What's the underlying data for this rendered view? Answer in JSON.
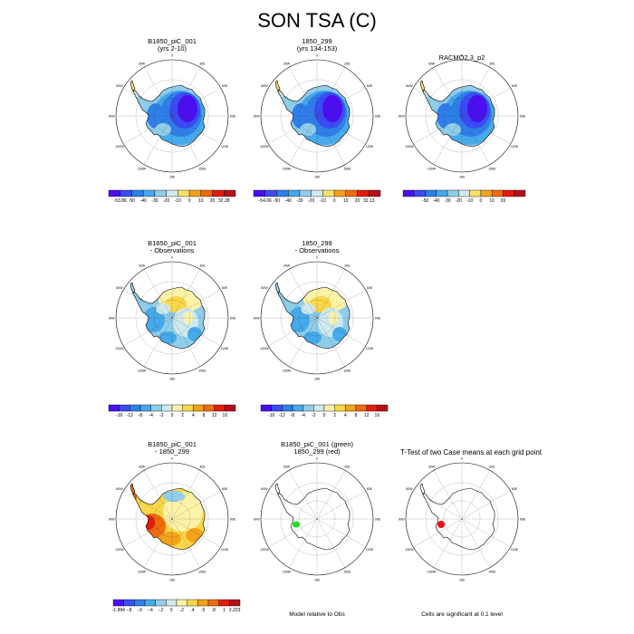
{
  "title": "SON TSA (C)",
  "colors": {
    "abs_scale": [
      "#4b0ef0",
      "#3a4cf5",
      "#2f7fea",
      "#45a9ea",
      "#8fcdea",
      "#cfe9ee",
      "#f8e16a",
      "#f5a21b",
      "#f06b0c",
      "#e41b0b",
      "#b5101a"
    ],
    "diff_scale": [
      "#4b0ef0",
      "#3a4cf5",
      "#2f7fea",
      "#45a9ea",
      "#8fcdea",
      "#cfe9ee",
      "#fdf3a8",
      "#f8d84a",
      "#f5a21b",
      "#f06b0c",
      "#e41b0b",
      "#b5101a"
    ],
    "case1_sig": "#22dd22",
    "case2_sig": "#ee1111"
  },
  "chart_data": [
    {
      "type": "heatmap",
      "projection": "south-polar-stereographic",
      "title": "B1850_piC_001",
      "subtitle": "(yrs 2-10)",
      "colorbar_ticks": [
        "-53.86",
        "-50",
        "-40",
        "-30",
        "-20",
        "-10",
        "0",
        "10",
        "20",
        "32.28"
      ],
      "palette": "abs_scale",
      "value_range": [
        -53.86,
        32.28
      ]
    },
    {
      "type": "heatmap",
      "projection": "south-polar-stereographic",
      "title": "1850_299",
      "subtitle": "(yrs 134-153)",
      "colorbar_ticks": [
        "-54.06",
        "-50",
        "-40",
        "-30",
        "-20",
        "-10",
        "0",
        "10",
        "20",
        "32.13"
      ],
      "palette": "abs_scale",
      "value_range": [
        -54.06,
        32.13
      ]
    },
    {
      "type": "heatmap",
      "projection": "south-polar-stereographic",
      "title": "RACMO2.3_p2",
      "subtitle": "",
      "colorbar_ticks": [
        "-50",
        "-40",
        "-30",
        "-20",
        "-10",
        "0",
        "10",
        "20"
      ],
      "palette": "abs_scale",
      "value_range": [
        -55,
        25
      ]
    },
    {
      "type": "heatmap",
      "projection": "south-polar-stereographic",
      "title": "B1850_piC_001",
      "subtitle": "- Observations",
      "colorbar_ticks": [
        "-16",
        "-12",
        "-8",
        "-4",
        "-2",
        "0",
        "2",
        "4",
        "8",
        "12",
        "16"
      ],
      "palette": "diff_scale",
      "value_range": [
        -16,
        16
      ]
    },
    {
      "type": "heatmap",
      "projection": "south-polar-stereographic",
      "title": "1850_299",
      "subtitle": "- Observations",
      "colorbar_ticks": [
        "-16",
        "-12",
        "-8",
        "-4",
        "-2",
        "0",
        "2",
        "4",
        "8",
        "12",
        "16"
      ],
      "palette": "diff_scale",
      "value_range": [
        -16,
        16
      ]
    },
    {
      "type": "heatmap",
      "projection": "south-polar-stereographic",
      "title": "B1850_piC_001",
      "subtitle": "- 1850_299",
      "colorbar_ticks": [
        "-1.994",
        "-.8",
        "-.6",
        "-.4",
        "-.2",
        "0",
        ".2",
        ".4",
        ".6",
        ".8",
        "1",
        "2.223"
      ],
      "palette": "diff_scale",
      "value_range": [
        -1.994,
        2.223
      ]
    },
    {
      "type": "heatmap",
      "projection": "south-polar-stereographic",
      "title": "B1850_piC_001 (green)",
      "subtitle": "1850_299 (red)",
      "note": "Model relative to Obs"
    },
    {
      "type": "heatmap",
      "projection": "south-polar-stereographic",
      "title": "T-Test of two Case means at each grid point",
      "subtitle": "",
      "note": "Cells are significant at 0.1 level"
    }
  ],
  "map_labels": {
    "lon": [
      "0",
      "30E",
      "60E",
      "90E",
      "120E",
      "150E",
      "180",
      "150W",
      "120W",
      "90W",
      "60W",
      "30W"
    ]
  }
}
